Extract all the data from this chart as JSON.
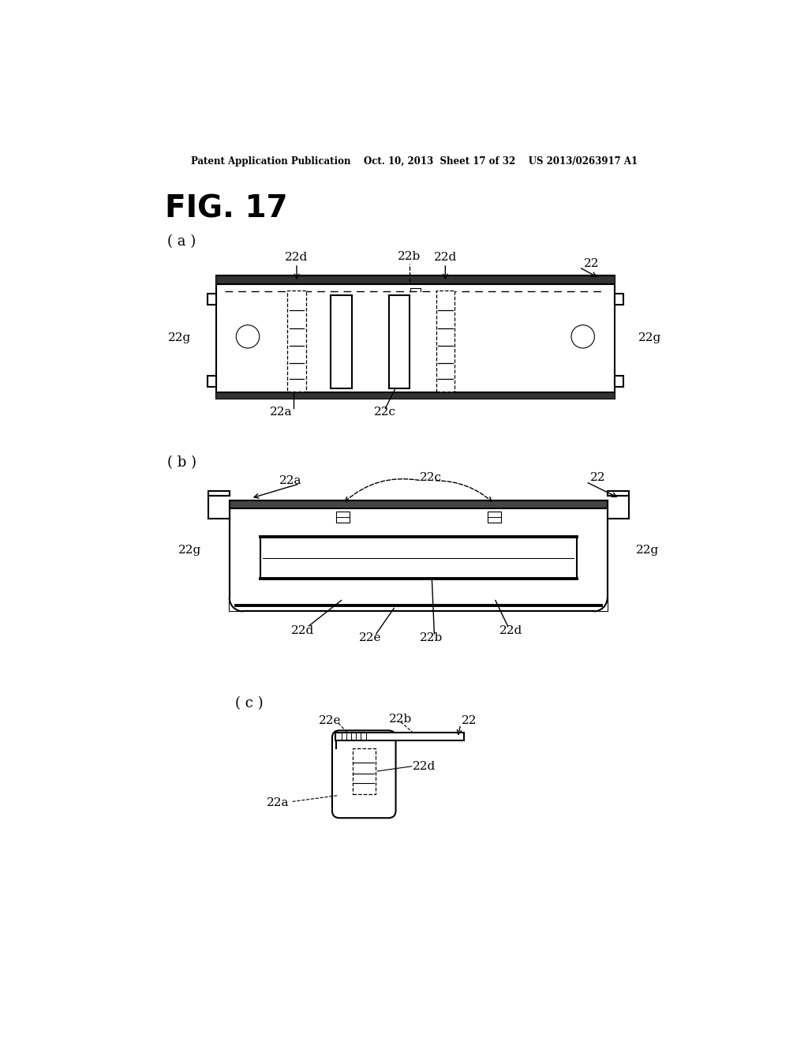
{
  "bg_color": "#ffffff",
  "text_color": "#000000",
  "header_text": "Patent Application Publication    Oct. 10, 2013  Sheet 17 of 32    US 2013/0263917 A1",
  "fig_title": "FIG. 17",
  "label_a": "( a )",
  "label_b": "( b )",
  "label_c": "( c )"
}
